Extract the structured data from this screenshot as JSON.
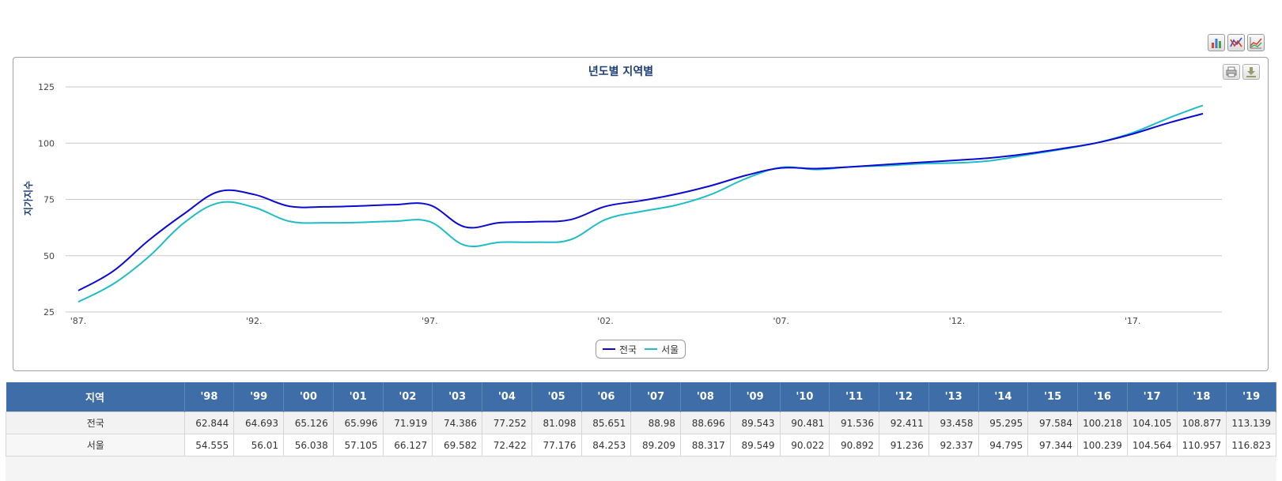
{
  "chart_data": {
    "type": "line",
    "title": "년도별 지역별",
    "ylabel": "지가지수",
    "xlabel": "",
    "ylim": [
      25,
      125
    ],
    "yticks": [
      25,
      50,
      75,
      100,
      125
    ],
    "xticks": [
      {
        "label": "'87.",
        "year": 1987
      },
      {
        "label": "'92.",
        "year": 1992
      },
      {
        "label": "'97.",
        "year": 1997
      },
      {
        "label": "'02.",
        "year": 2002
      },
      {
        "label": "'07.",
        "year": 2007
      },
      {
        "label": "'12.",
        "year": 2012
      },
      {
        "label": "'17.",
        "year": 2017
      }
    ],
    "x": [
      1987,
      1988,
      1989,
      1990,
      1991,
      1992,
      1993,
      1994,
      1995,
      1996,
      1997,
      1998,
      1999,
      2000,
      2001,
      2002,
      2003,
      2004,
      2005,
      2006,
      2007,
      2008,
      2009,
      2010,
      2011,
      2012,
      2013,
      2014,
      2015,
      2016,
      2017,
      2018,
      2019
    ],
    "series": [
      {
        "name": "전국",
        "color": "#0a0ad2",
        "values": [
          34.5,
          43.2,
          56.8,
          68.5,
          78.5,
          77.2,
          72.0,
          71.7,
          72.1,
          72.7,
          72.5,
          62.8,
          64.7,
          65.1,
          66.0,
          71.9,
          74.4,
          77.3,
          81.1,
          85.7,
          89.0,
          88.7,
          89.5,
          90.5,
          91.5,
          92.4,
          93.5,
          95.3,
          97.6,
          100.2,
          104.1,
          108.9,
          113.1
        ]
      },
      {
        "name": "서울",
        "color": "#1ebdc6",
        "values": [
          29.5,
          37.5,
          49.5,
          64.5,
          73.5,
          71.5,
          65.3,
          64.6,
          64.8,
          65.3,
          65.1,
          54.6,
          56.0,
          56.0,
          57.1,
          66.1,
          69.6,
          72.4,
          77.2,
          84.3,
          89.2,
          88.3,
          89.5,
          90.0,
          90.9,
          91.2,
          92.3,
          94.8,
          97.3,
          100.2,
          104.6,
          111.0,
          116.8
        ]
      }
    ]
  },
  "legend": {
    "items": [
      "전국",
      "서울"
    ]
  },
  "toolbar": {
    "icons": [
      "bar-chart-icon",
      "line-chart-icon",
      "area-chart-icon"
    ]
  },
  "chart_tools": {
    "icons": [
      "print-icon",
      "download-icon"
    ]
  },
  "table": {
    "header_region": "지역",
    "years": [
      "'98",
      "'99",
      "'00",
      "'01",
      "'02",
      "'03",
      "'04",
      "'05",
      "'06",
      "'07",
      "'08",
      "'09",
      "'10",
      "'11",
      "'12",
      "'13",
      "'14",
      "'15",
      "'16",
      "'17",
      "'18",
      "'19"
    ],
    "rows": [
      {
        "region": "전국",
        "values": [
          "62.844",
          "64.693",
          "65.126",
          "65.996",
          "71.919",
          "74.386",
          "77.252",
          "81.098",
          "85.651",
          "88.98",
          "88.696",
          "89.543",
          "90.481",
          "91.536",
          "92.411",
          "93.458",
          "95.295",
          "97.584",
          "100.218",
          "104.105",
          "108.877",
          "113.139"
        ]
      },
      {
        "region": "서울",
        "values": [
          "54.555",
          "56.01",
          "56.038",
          "57.105",
          "66.127",
          "69.582",
          "72.422",
          "77.176",
          "84.253",
          "89.209",
          "88.317",
          "89.549",
          "90.022",
          "90.892",
          "91.236",
          "92.337",
          "94.795",
          "97.344",
          "100.239",
          "104.564",
          "110.957",
          "116.823"
        ]
      }
    ]
  },
  "colors": {
    "accent": "#3e6da8",
    "title": "#1f3f7a",
    "grid": "#c8c8c8"
  }
}
